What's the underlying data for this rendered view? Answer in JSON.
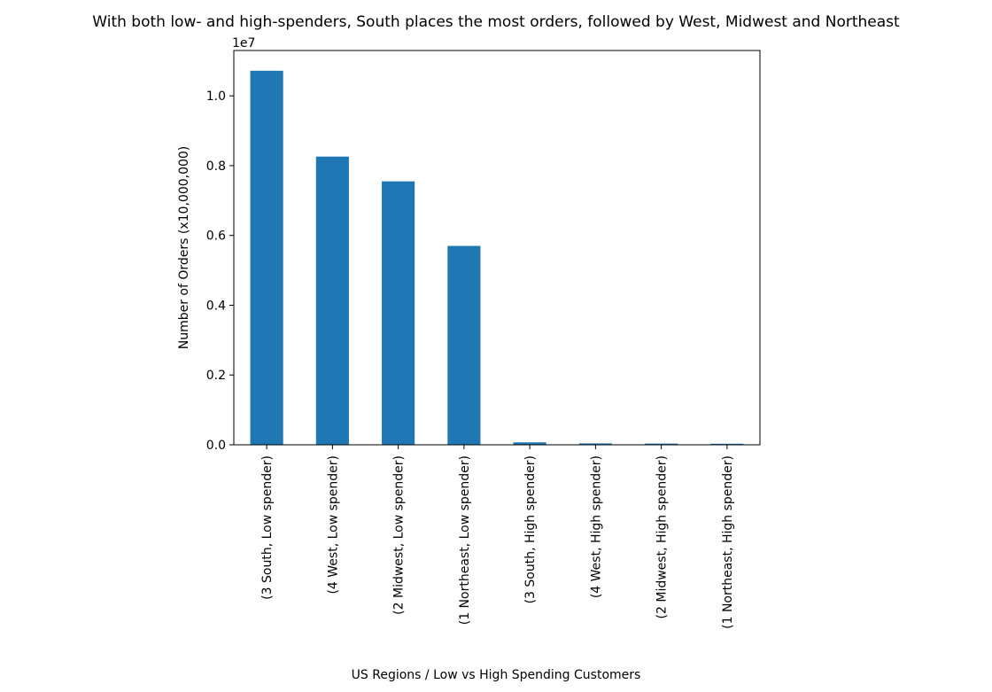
{
  "chart_data": {
    "type": "bar",
    "title": "With both low- and high-spenders, South places the most orders, followed by West, Midwest and Northeast",
    "xlabel": "US Regions / Low vs High Spending Customers",
    "ylabel": "Number of Orders (x10,000,000)",
    "offset_label": "1e7",
    "categories": [
      "(3 South, Low spender)",
      "(4 West, Low spender)",
      "(2 Midwest, Low spender)",
      "(1 Northeast, Low spender)",
      "(3 South, High spender)",
      "(4 West, High spender)",
      "(2 Midwest, High spender)",
      "(1 Northeast, High spender)"
    ],
    "values": [
      10720000,
      8260000,
      7550000,
      5700000,
      70000,
      40000,
      35000,
      30000
    ],
    "ylim": [
      0,
      11300000
    ],
    "yticks": [
      0,
      2000000,
      4000000,
      6000000,
      8000000,
      10000000
    ],
    "ytick_labels": [
      "0.0",
      "0.2",
      "0.4",
      "0.6",
      "0.8",
      "1.0"
    ],
    "bar_color": "#1f77b4",
    "grid": false,
    "legend": "none"
  }
}
